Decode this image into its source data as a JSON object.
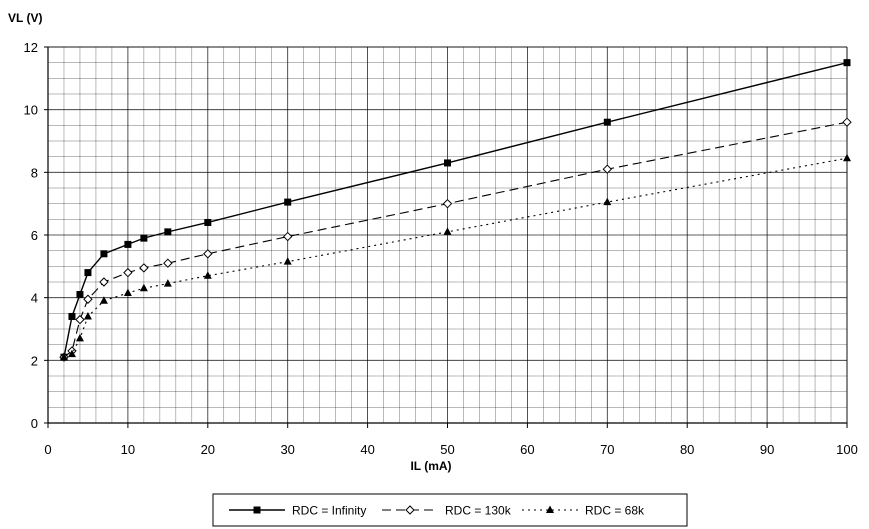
{
  "chart_data": {
    "type": "line",
    "xlabel": "IL (mA)",
    "ylabel": "VL (V)",
    "xlim": [
      0,
      100
    ],
    "ylim": [
      0,
      12
    ],
    "x_ticks": [
      0,
      10,
      20,
      30,
      40,
      50,
      60,
      70,
      80,
      90,
      100
    ],
    "y_ticks": [
      0,
      2,
      4,
      6,
      8,
      10,
      12
    ],
    "grid": true,
    "legend_position": "bottom-center",
    "series": [
      {
        "name": "RDC = Infinity",
        "line_style": "solid",
        "marker": "square",
        "color": "#000000",
        "x": [
          2,
          3,
          4,
          5,
          7,
          10,
          12,
          15,
          20,
          30,
          50,
          70,
          100
        ],
        "y": [
          2.1,
          3.4,
          4.1,
          4.8,
          5.4,
          5.7,
          5.9,
          6.1,
          6.4,
          7.05,
          8.3,
          9.6,
          11.5
        ]
      },
      {
        "name": "RDC = 130k",
        "line_style": "dashed",
        "marker": "diamond",
        "color": "#000000",
        "x": [
          2,
          3,
          4,
          5,
          7,
          10,
          12,
          15,
          20,
          30,
          50,
          70,
          100
        ],
        "y": [
          2.1,
          2.3,
          3.3,
          3.95,
          4.5,
          4.8,
          4.95,
          5.1,
          5.4,
          5.95,
          7.0,
          8.1,
          9.6
        ]
      },
      {
        "name": "RDC = 68k",
        "line_style": "dotted",
        "marker": "triangle",
        "color": "#000000",
        "x": [
          2,
          3,
          4,
          5,
          7,
          10,
          12,
          15,
          20,
          30,
          50,
          70,
          100
        ],
        "y": [
          2.1,
          2.2,
          2.7,
          3.4,
          3.9,
          4.15,
          4.3,
          4.45,
          4.7,
          5.15,
          6.1,
          7.05,
          8.45
        ]
      }
    ]
  }
}
